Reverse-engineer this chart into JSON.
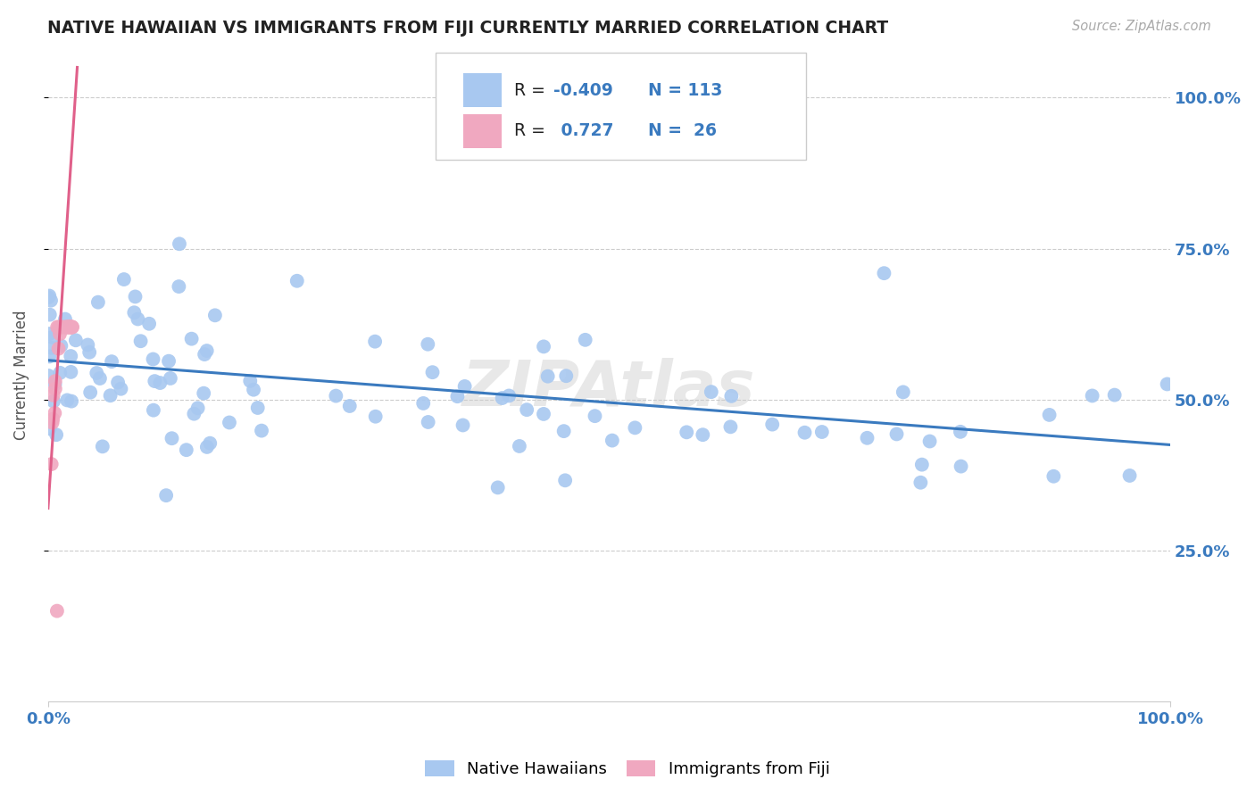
{
  "title": "NATIVE HAWAIIAN VS IMMIGRANTS FROM FIJI CURRENTLY MARRIED CORRELATION CHART",
  "source_text": "Source: ZipAtlas.com",
  "ylabel": "Currently Married",
  "xlim": [
    0.0,
    1.0
  ],
  "ylim": [
    0.0,
    1.08
  ],
  "x_tick_positions": [
    0.0,
    1.0
  ],
  "x_tick_labels": [
    "0.0%",
    "100.0%"
  ],
  "y_tick_positions": [
    0.25,
    0.5,
    0.75,
    1.0
  ],
  "y_tick_labels": [
    "25.0%",
    "50.0%",
    "75.0%",
    "100.0%"
  ],
  "blue_color": "#3a7abf",
  "blue_scatter_color": "#a8c8f0",
  "pink_color": "#e0608a",
  "pink_scatter_color": "#f0a8c0",
  "grid_color": "#cccccc",
  "background_color": "#ffffff",
  "title_color": "#222222",
  "axis_label_color": "#555555",
  "tick_label_color": "#3a7abf",
  "source_color": "#aaaaaa",
  "watermark_color": "#cccccc",
  "blue_trendline_x": [
    0.0,
    1.0
  ],
  "blue_trendline_y": [
    0.565,
    0.425
  ],
  "pink_trendline_x": [
    0.0,
    0.026
  ],
  "pink_trendline_y": [
    0.32,
    1.05
  ],
  "legend_R1": "-0.409",
  "legend_N1": "113",
  "legend_R2": "0.727",
  "legend_N2": "26"
}
